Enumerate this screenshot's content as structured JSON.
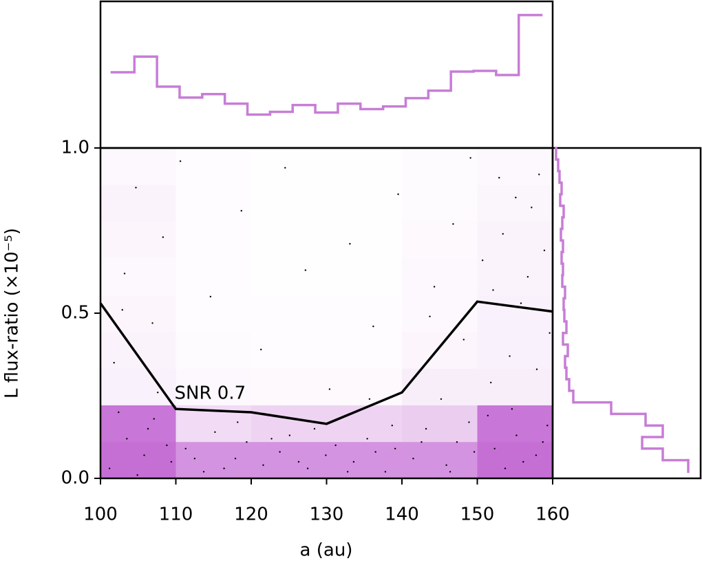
{
  "chart_data": [
    {
      "type": "scatter",
      "xlabel": "a (au)",
      "ylabel": "L flux-ratio (×10⁻⁵)",
      "xlim": [
        100,
        160
      ],
      "ylim": [
        0,
        1
      ],
      "xticks": [
        100,
        110,
        120,
        130,
        140,
        150,
        160
      ],
      "yticks": [
        {
          "value": 0,
          "label": "0.0"
        },
        0.5,
        {
          "value": 1,
          "label": "1.0"
        }
      ],
      "color": "#000000",
      "x": [
        101.2,
        103.5,
        105.8,
        107.1,
        109.4,
        111.3,
        113.7,
        115.2,
        117.9,
        119.4,
        121.6,
        123.8,
        125.1,
        127.5,
        129.9,
        131.2,
        133.6,
        135.4,
        137.8,
        139.1,
        141.5,
        143.2,
        145.9,
        147.3,
        149.6,
        151.4,
        153.7,
        155.2,
        157.8,
        159.3,
        102.4,
        104.9,
        106.3,
        108.8,
        112.5,
        116.4,
        118.2,
        122.7,
        126.3,
        128.4,
        132.8,
        136.5,
        138.7,
        142.6,
        146.4,
        148.9,
        152.3,
        154.6,
        156.1,
        158.7,
        101.8,
        103.2,
        104.7,
        106.9,
        108.3,
        111.8,
        114.6,
        118.7,
        121.3,
        124.5,
        127.2,
        130.4,
        133.1,
        136.2,
        139.5,
        141.9,
        144.3,
        146.8,
        148.2,
        150.7,
        152.9,
        154.3,
        155.8,
        157.2,
        158.9,
        159.6,
        151.8,
        153.4,
        156.7,
        149.1,
        102.9,
        107.6,
        143.7,
        145.2,
        152.1,
        155.1,
        157.9,
        110.6,
        135.7,
        158.2
      ],
      "y": [
        0.03,
        0.12,
        0.07,
        0.18,
        0.05,
        0.09,
        0.02,
        0.14,
        0.06,
        0.11,
        0.04,
        0.08,
        0.13,
        0.03,
        0.07,
        0.1,
        0.05,
        0.12,
        0.02,
        0.09,
        0.06,
        0.15,
        0.04,
        0.11,
        0.08,
        0.19,
        0.03,
        0.13,
        0.07,
        0.16,
        0.2,
        0.01,
        0.15,
        0.1,
        0.06,
        0.03,
        0.17,
        0.12,
        0.05,
        0.15,
        0.02,
        0.08,
        0.16,
        0.11,
        0.02,
        0.17,
        0.09,
        0.21,
        0.05,
        0.11,
        0.35,
        0.62,
        0.88,
        0.47,
        0.73,
        0.28,
        0.55,
        0.81,
        0.39,
        0.94,
        0.63,
        0.27,
        0.71,
        0.46,
        0.86,
        0.31,
        0.58,
        0.77,
        0.42,
        0.66,
        0.91,
        0.37,
        0.53,
        0.82,
        0.69,
        0.44,
        0.29,
        0.74,
        0.61,
        0.97,
        0.51,
        0.26,
        0.49,
        0.24,
        0.57,
        0.85,
        0.33,
        0.96,
        0.24,
        0.92
      ],
      "heatmap": {
        "color": "#c56fd5",
        "xbins": [
          100,
          110,
          120,
          130,
          140,
          150,
          160
        ],
        "ybins": [
          0,
          0.111,
          0.222,
          0.333,
          0.444,
          0.556,
          0.667,
          0.778,
          0.889,
          1.0
        ],
        "values": [
          [
            1.0,
            0.75,
            0.75,
            0.75,
            0.75,
            1.0
          ],
          [
            0.95,
            0.25,
            0.3,
            0.3,
            0.35,
            0.95
          ],
          [
            0.1,
            0.05,
            0.04,
            0.04,
            0.12,
            0.12
          ],
          [
            0.08,
            0.03,
            0.02,
            0.02,
            0.06,
            0.1
          ],
          [
            0.06,
            0.02,
            0.02,
            0.02,
            0.05,
            0.1
          ],
          [
            0.05,
            0.02,
            0.01,
            0.01,
            0.05,
            0.08
          ],
          [
            0.06,
            0.02,
            0.01,
            0.01,
            0.04,
            0.08
          ],
          [
            0.08,
            0.02,
            0.01,
            0.01,
            0.03,
            0.07
          ],
          [
            0.05,
            0.02,
            0.01,
            0.01,
            0.03,
            0.05
          ]
        ]
      },
      "line": {
        "color": "#000000",
        "x": [
          100,
          110,
          120,
          130,
          140,
          150,
          160
        ],
        "values": [
          0.53,
          0.21,
          0.2,
          0.165,
          0.26,
          0.535,
          0.505
        ],
        "annotation": "SNR 0.7"
      }
    },
    {
      "type": "histogram",
      "orientation": "vertical",
      "color": "#c77dd6",
      "ylim": [
        0,
        215
      ],
      "bins": [
        101.5,
        104.5,
        107.5,
        110.5,
        113.5,
        116.5,
        119.5,
        122.5,
        125.5,
        128.5,
        131.5,
        134.5,
        137.5,
        140.5,
        143.5,
        146.5,
        149.5,
        152.5,
        155.5,
        158.5
      ],
      "counts": [
        111,
        134,
        90,
        74,
        79,
        65,
        49,
        53,
        63,
        52,
        65,
        57,
        61,
        73,
        84,
        112,
        113,
        107,
        195
      ]
    },
    {
      "type": "histogram",
      "orientation": "horizontal",
      "color": "#c77dd6",
      "xlim": [
        0,
        215
      ],
      "bins": [
        0.02,
        0.055,
        0.09,
        0.125,
        0.16,
        0.195,
        0.23,
        0.265,
        0.3,
        0.335,
        0.37,
        0.405,
        0.44,
        0.475,
        0.51,
        0.545,
        0.58,
        0.615,
        0.65,
        0.685,
        0.72,
        0.755,
        0.79,
        0.825,
        0.86,
        0.895,
        0.93,
        0.965,
        1.0
      ],
      "counts": [
        197,
        160,
        130,
        160,
        135,
        85,
        30,
        24,
        20,
        18,
        22,
        15,
        20,
        17,
        16,
        18,
        14,
        15,
        13,
        15,
        12,
        14,
        16,
        11,
        13,
        10,
        8,
        5
      ]
    }
  ]
}
